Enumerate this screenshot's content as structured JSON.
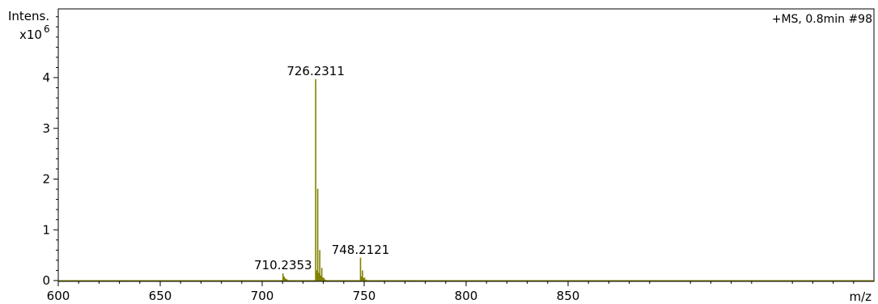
{
  "chart_data": {
    "type": "line",
    "spectrum_label": "+MS, 0.8min #98",
    "ylabel_line1": "Intens.",
    "ylabel_multiplier": "x10",
    "ylabel_exponent": "6",
    "xlabel": "m/z",
    "xlim": [
      600,
      1000
    ],
    "ylim": [
      0,
      4.0
    ],
    "x_ticks": [
      600,
      650,
      700,
      750,
      800,
      850
    ],
    "y_ticks": [
      0,
      1,
      2,
      3,
      4
    ],
    "line_color": "#808000",
    "grid": false,
    "peak_labels": [
      {
        "x": 710.2353,
        "y": 0.14,
        "text": "710.2353"
      },
      {
        "x": 726.2311,
        "y": 3.97,
        "text": "726.2311"
      },
      {
        "x": 748.2121,
        "y": 0.45,
        "text": "748.2121"
      }
    ],
    "peaks": [
      {
        "x": 710.2,
        "y": 0.14
      },
      {
        "x": 710.7,
        "y": 0.08
      },
      {
        "x": 711.2,
        "y": 0.05
      },
      {
        "x": 711.8,
        "y": 0.03
      },
      {
        "x": 712.3,
        "y": 0.02
      },
      {
        "x": 712.9,
        "y": 0.01
      },
      {
        "x": 726.23,
        "y": 3.97
      },
      {
        "x": 726.7,
        "y": 0.2
      },
      {
        "x": 727.23,
        "y": 1.81
      },
      {
        "x": 727.7,
        "y": 0.15
      },
      {
        "x": 728.23,
        "y": 0.6
      },
      {
        "x": 728.7,
        "y": 0.1
      },
      {
        "x": 729.23,
        "y": 0.25
      },
      {
        "x": 729.8,
        "y": 0.06
      },
      {
        "x": 730.3,
        "y": 0.05
      },
      {
        "x": 731.0,
        "y": 0.02
      },
      {
        "x": 748.21,
        "y": 0.45
      },
      {
        "x": 748.7,
        "y": 0.08
      },
      {
        "x": 749.2,
        "y": 0.2
      },
      {
        "x": 749.7,
        "y": 0.05
      },
      {
        "x": 750.2,
        "y": 0.06
      },
      {
        "x": 751.0,
        "y": 0.02
      },
      {
        "x": 774.5,
        "y": 0.01
      }
    ]
  }
}
